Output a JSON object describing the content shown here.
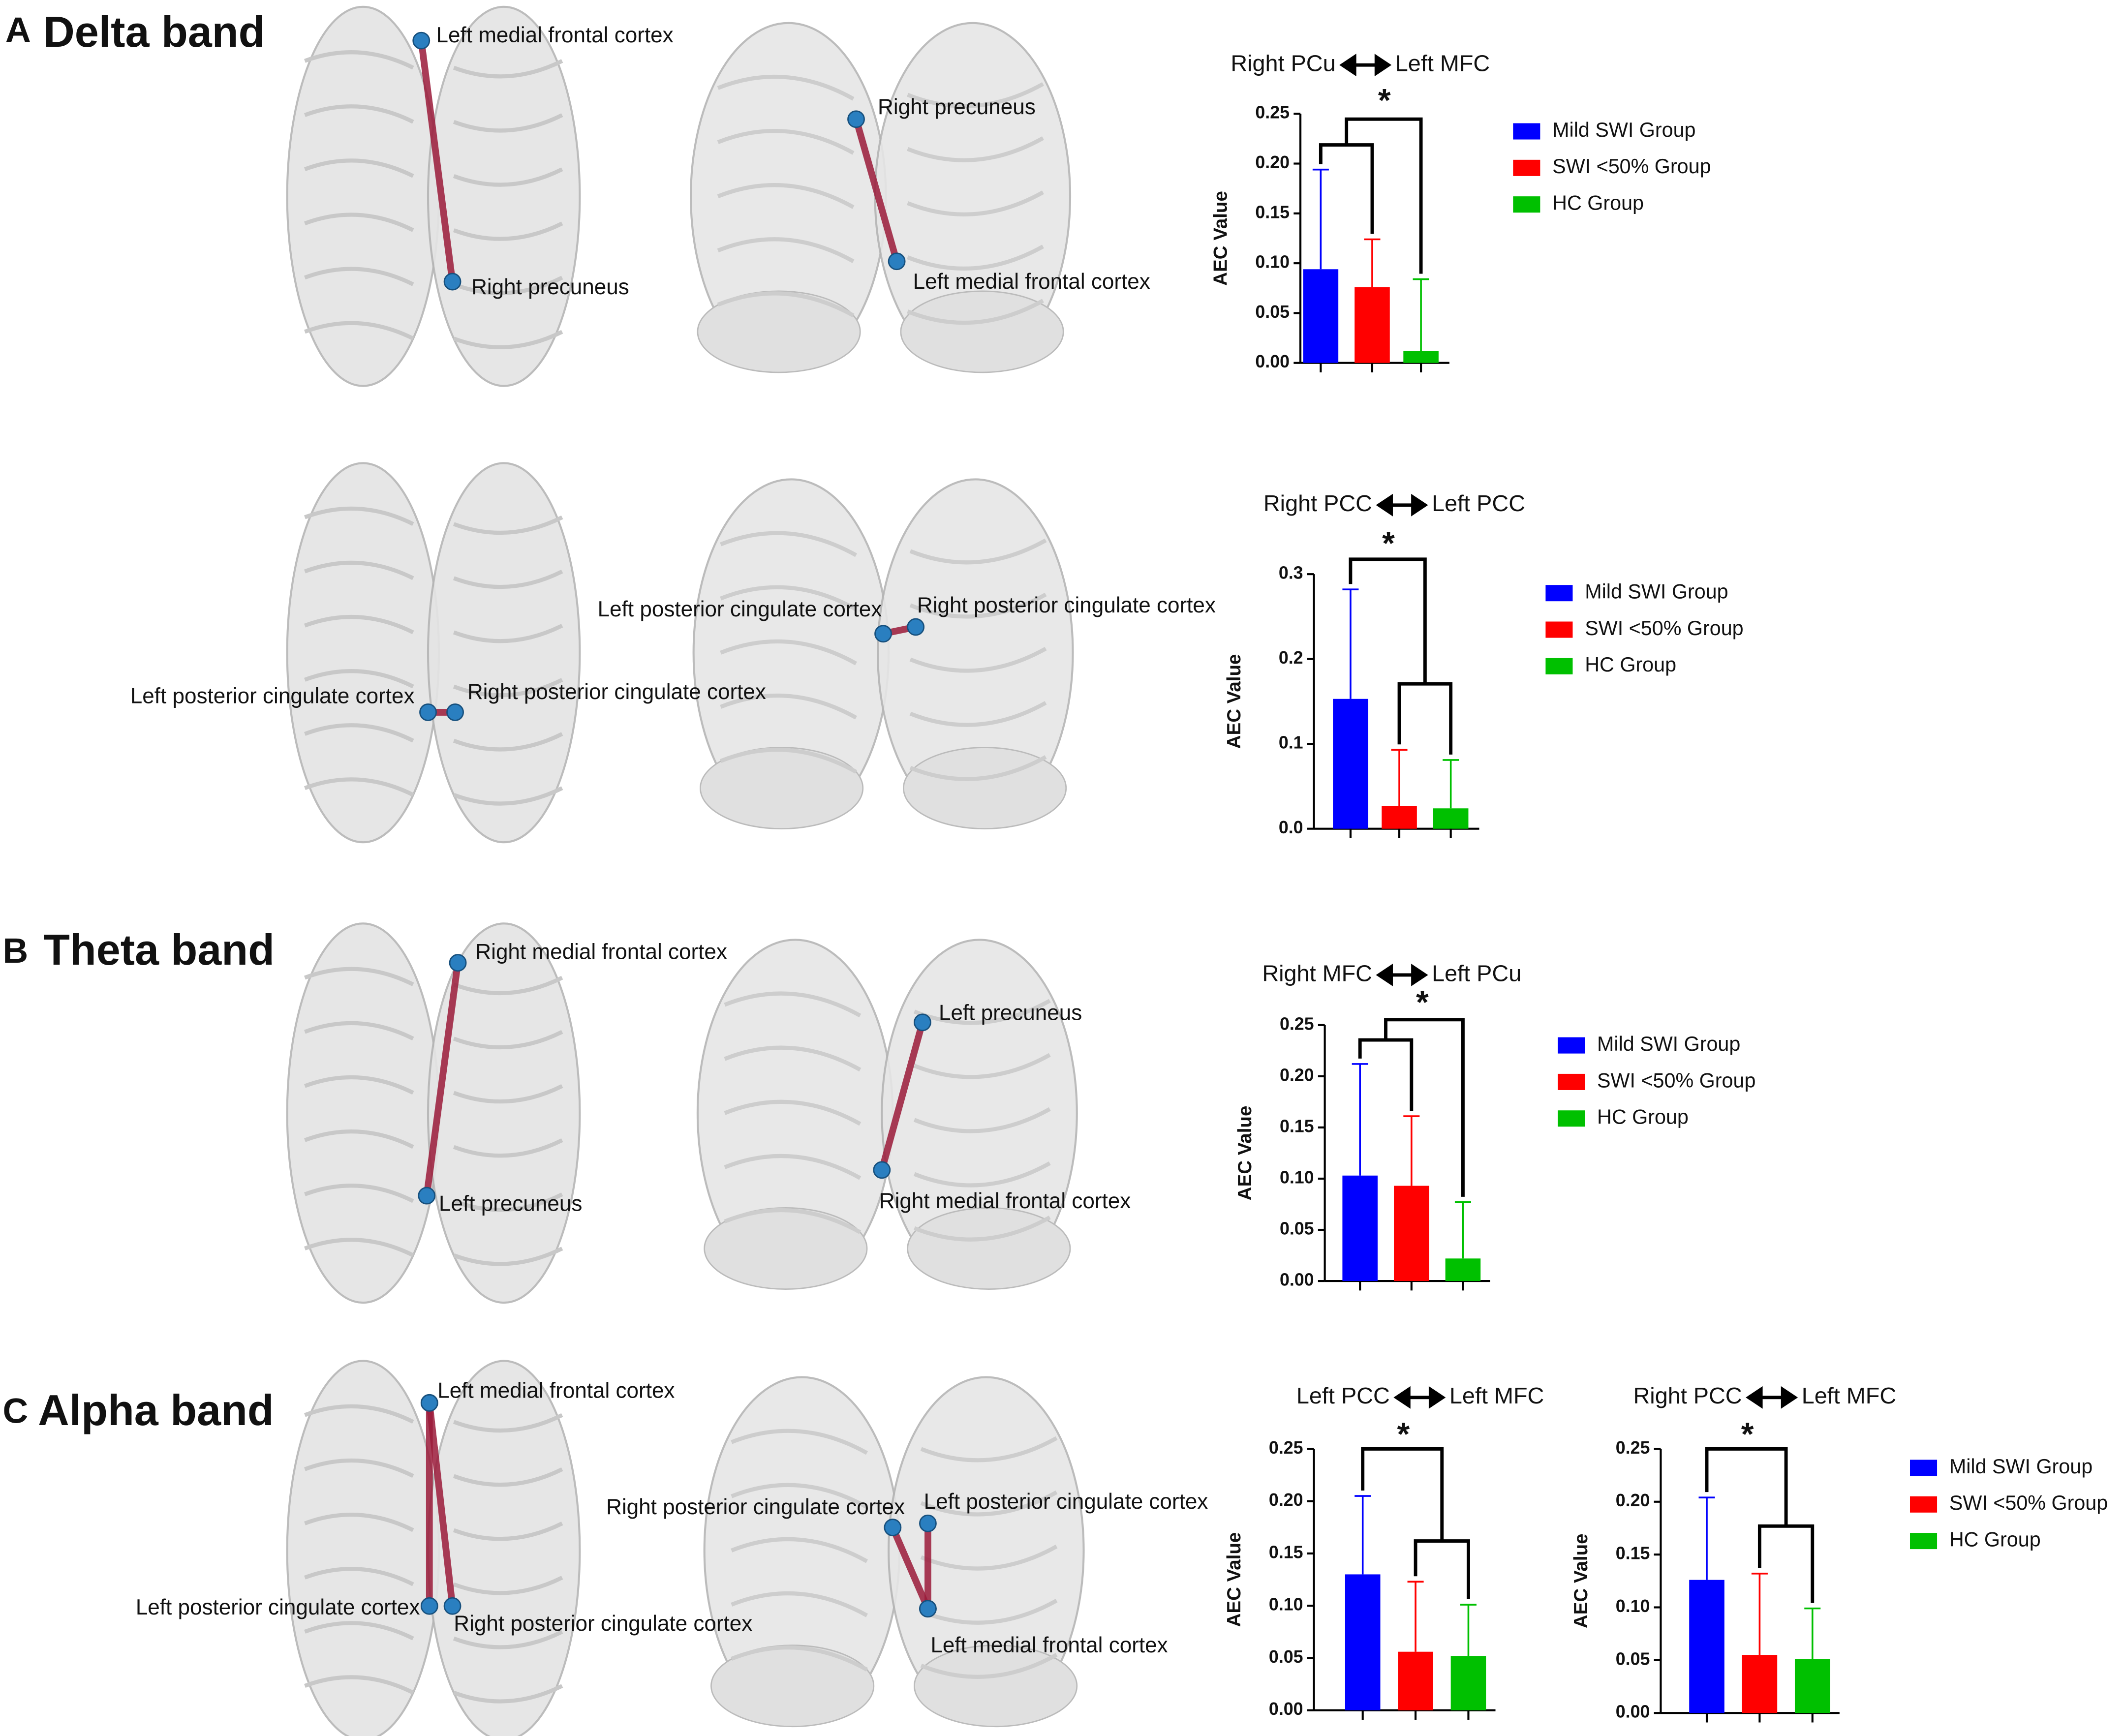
{
  "panels": [
    {
      "letter": "A",
      "title": "Delta band"
    },
    {
      "letter": "B",
      "title": "Theta band"
    },
    {
      "letter": "C",
      "title": "Alpha band"
    }
  ],
  "brain_labels": [
    "Left medial frontal cortex",
    "Right precuneus",
    "Right precuneus",
    "Left medial frontal cortex",
    "Left posterior cingulate cortex",
    "Right posterior cingulate cortex",
    "Left posterior cingulate cortex",
    "Right posterior cingulate cortex",
    "Right medial frontal cortex",
    "Left precuneus",
    "Left precuneus",
    "Right medial frontal cortex",
    "Left medial frontal cortex",
    "Left posterior cingulate cortex",
    "Right posterior cingulate cortex",
    "Right posterior cingulate cortex",
    "Left posterior cingulate cortex",
    "Left medial frontal cortex"
  ],
  "chart_data": [
    {
      "type": "bar",
      "title_from": "Right PCu",
      "title_to": "Left MFC",
      "ylabel": "AEC Value",
      "categories": [
        null,
        null,
        null
      ],
      "values": [
        0.094,
        0.076,
        0.012
      ],
      "errors": [
        0.1,
        0.048,
        0.072
      ],
      "colors": [
        "#0000ff",
        "#ff0000",
        "#00c000"
      ],
      "legend": [
        "Mild SWI Group",
        "SWI <50% Group",
        "HC Group"
      ],
      "annotation": "*",
      "ylim": [
        0,
        0.25
      ],
      "yticks": [
        {
          "value": 0,
          "label": "0.00"
        },
        0.05,
        {
          "value": 0.1,
          "label": "0.10"
        },
        0.15,
        {
          "value": 0.2,
          "label": "0.20"
        },
        0.25
      ]
    },
    {
      "type": "bar",
      "title_from": "Right PCC",
      "title_to": "Left PCC",
      "ylabel": "AEC Value",
      "categories": [
        null,
        null,
        null
      ],
      "values": [
        0.153,
        0.027,
        0.024
      ],
      "errors": [
        0.129,
        0.066,
        0.057
      ],
      "colors": [
        "#0000ff",
        "#ff0000",
        "#00c000"
      ],
      "legend": [
        "Mild SWI Group",
        "SWI <50% Group",
        "HC Group"
      ],
      "annotation": "*",
      "ylim": [
        0,
        0.3
      ],
      "yticks": [
        {
          "value": 0,
          "label": "0.0"
        },
        0.1,
        0.2,
        0.3
      ]
    },
    {
      "type": "bar",
      "title_from": "Right MFC",
      "title_to": "Left PCu",
      "ylabel": "AEC Value",
      "categories": [
        null,
        null,
        null
      ],
      "values": [
        0.103,
        0.093,
        0.022
      ],
      "errors": [
        0.109,
        0.068,
        0.055
      ],
      "colors": [
        "#0000ff",
        "#ff0000",
        "#00c000"
      ],
      "legend": [
        "Mild SWI Group",
        "SWI <50% Group",
        "HC Group"
      ],
      "annotation": "*",
      "ylim": [
        0,
        0.25
      ],
      "yticks": [
        {
          "value": 0,
          "label": "0.00"
        },
        0.05,
        {
          "value": 0.1,
          "label": "0.10"
        },
        0.15,
        {
          "value": 0.2,
          "label": "0.20"
        },
        0.25
      ]
    },
    {
      "type": "bar",
      "title_from": "Left PCC",
      "title_to": "Left MFC",
      "ylabel": "AEC Value",
      "categories": [
        null,
        null,
        null
      ],
      "values": [
        0.13,
        0.056,
        0.052
      ],
      "errors": [
        0.075,
        0.067,
        0.049
      ],
      "colors": [
        "#0000ff",
        "#ff0000",
        "#00c000"
      ],
      "annotation": "*",
      "ylim": [
        0,
        0.25
      ],
      "yticks": [
        {
          "value": 0,
          "label": "0.00"
        },
        0.05,
        {
          "value": 0.1,
          "label": "0.10"
        },
        0.15,
        {
          "value": 0.2,
          "label": "0.20"
        },
        0.25
      ]
    },
    {
      "type": "bar",
      "title_from": "Right PCC",
      "title_to": "Left MFC",
      "ylabel": "AEC Value",
      "categories": [
        null,
        null,
        null
      ],
      "values": [
        0.126,
        0.055,
        0.051
      ],
      "errors": [
        0.078,
        0.077,
        0.048
      ],
      "colors": [
        "#0000ff",
        "#ff0000",
        "#00c000"
      ],
      "legend": [
        "Mild SWI Group",
        "SWI <50% Group",
        "HC Group"
      ],
      "annotation": "*",
      "ylim": [
        0,
        0.25
      ],
      "yticks": [
        {
          "value": 0,
          "label": "0.00"
        },
        0.05,
        {
          "value": 0.1,
          "label": "0.10"
        },
        0.15,
        {
          "value": 0.2,
          "label": "0.20"
        },
        0.25
      ]
    }
  ]
}
